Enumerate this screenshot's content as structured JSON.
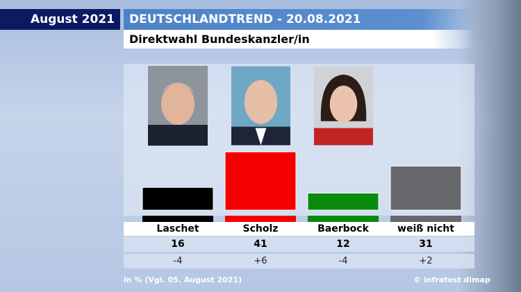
{
  "header": {
    "date": "August 2021",
    "title": "DEUTSCHLANDTREND - 20.08.2021",
    "subtitle": "Direktwahl Bundeskanzler/in"
  },
  "chart_data": {
    "type": "bar",
    "title": "Direktwahl Bundeskanzler/in",
    "categories": [
      "Laschet",
      "Scholz",
      "Baerbock",
      "weiß nicht"
    ],
    "values": [
      16,
      41,
      12,
      31
    ],
    "value_labels": [
      "16",
      "41",
      "12",
      "31"
    ],
    "changes": [
      "-4",
      "+6",
      "-4",
      "+2"
    ],
    "colors": [
      "#000000",
      "#f50000",
      "#0a8a0a",
      "#66686c"
    ],
    "unit_note": "in % (Vgl. 05. August 2021)",
    "ylim": [
      0,
      45
    ]
  },
  "footer": {
    "note": "in % (Vgl. 05. August 2021)",
    "source": "© infratest dimap"
  }
}
